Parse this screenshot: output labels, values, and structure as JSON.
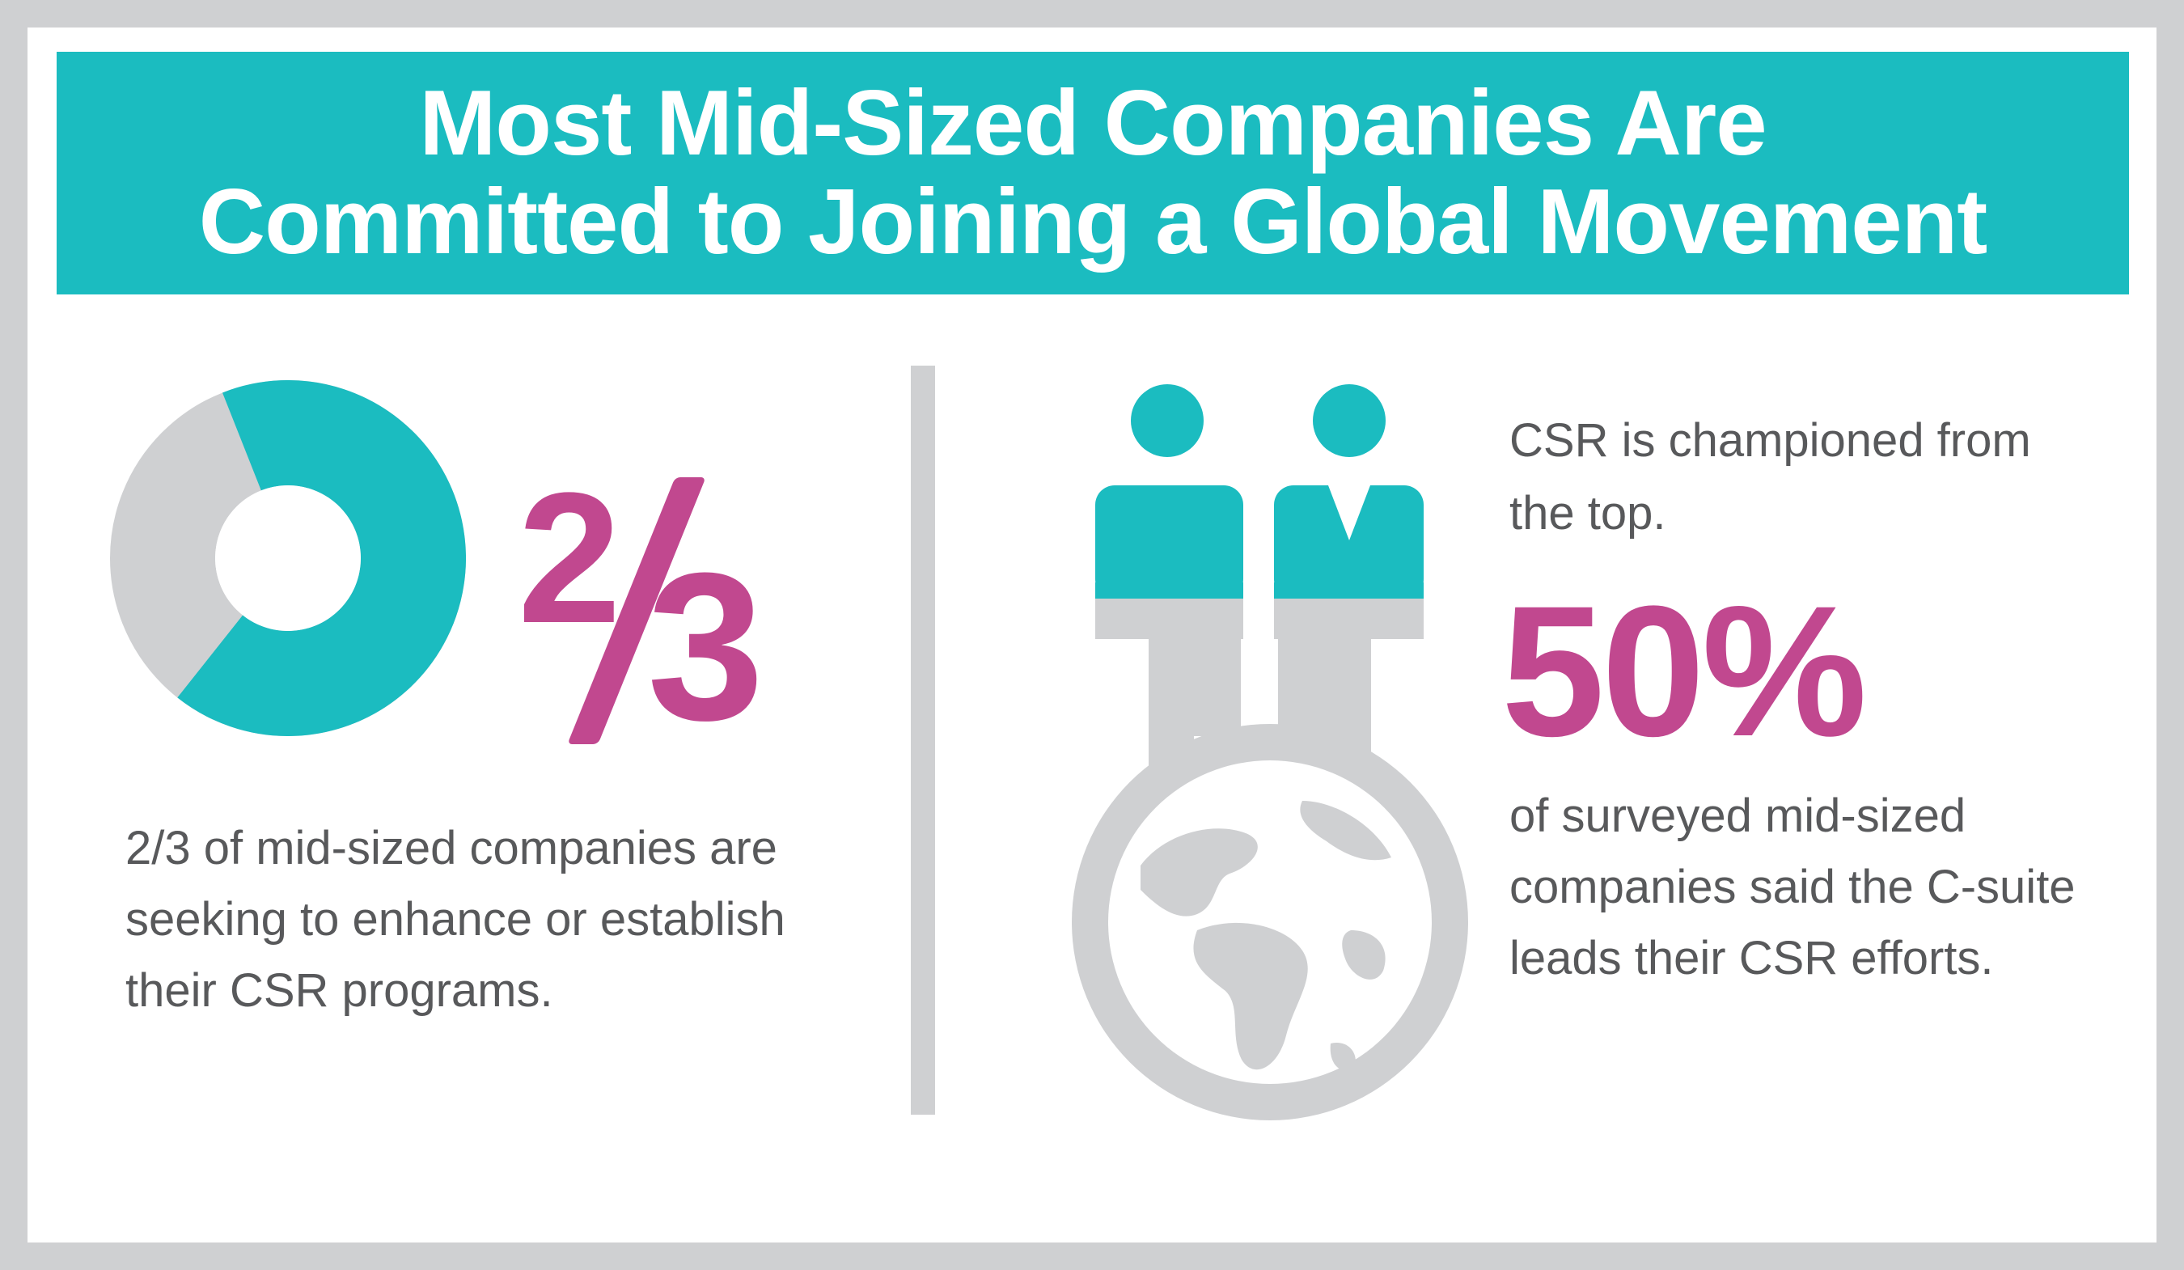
{
  "header": {
    "title_line1": "Most Mid-Sized Companies Are",
    "title_line2": "Committed to Joining a Global Movement"
  },
  "left_stat": {
    "fraction_value": 0.6667,
    "numerator": "2",
    "denominator": "3",
    "description": "2/3 of mid-sized companies are seeking to enhance or establish their CSR programs."
  },
  "right_stat": {
    "intro": "CSR is championed from the top.",
    "value": "50%",
    "description": "of surveyed mid-sized companies said the C-suite leads their CSR efforts."
  },
  "colors": {
    "teal": "#1bbcc0",
    "magenta": "#c1488f",
    "gray": "#cfd0d2",
    "text": "#58595b"
  },
  "icons": [
    "donut-chart-icon",
    "two-people-globe-icon"
  ]
}
